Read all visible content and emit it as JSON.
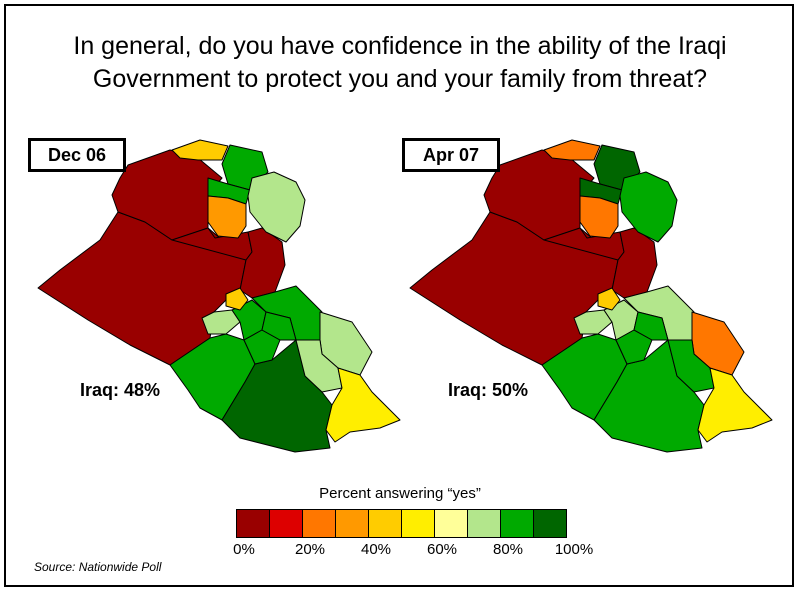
{
  "title": "In general, do you have confidence in the ability of the Iraqi\nGovernment to protect you and your family from threat?",
  "maps": [
    {
      "date": "Dec 06",
      "overall": "Iraq: 48%",
      "regions": {
        "north_tip": "#ffcc00",
        "northwest": "#990000",
        "west": "#990000",
        "center": "#990000",
        "east_strip": "#990000",
        "kurd_north": "#00aa00",
        "kurd_west": "#00aa00",
        "kurd_mid": "#ff9900",
        "kurd_east": "#b3e68c",
        "baghdad": "#ffcc00",
        "mid_west": "#b3e68c",
        "mid_1": "#00aa00",
        "mid_2": "#00aa00",
        "mid_3": "#00aa00",
        "mid_east": "#00aa00",
        "east_large": "#b3e68c",
        "se_right": "#b3e68c",
        "basra": "#ffee00",
        "south_west": "#00aa00",
        "south_big": "#006600"
      }
    },
    {
      "date": "Apr 07",
      "overall": "Iraq: 50%",
      "regions": {
        "north_tip": "#ff7700",
        "northwest": "#990000",
        "west": "#990000",
        "center": "#990000",
        "east_strip": "#990000",
        "kurd_north": "#006600",
        "kurd_west": "#006600",
        "kurd_mid": "#ff7700",
        "kurd_east": "#00aa00",
        "baghdad": "#ffcc00",
        "mid_west": "#b3e68c",
        "mid_1": "#b3e68c",
        "mid_2": "#00aa00",
        "mid_3": "#00aa00",
        "mid_east": "#b3e68c",
        "east_large": "#ff7700",
        "se_right": "#00aa00",
        "basra": "#ffee00",
        "south_west": "#00aa00",
        "south_big": "#00aa00"
      }
    }
  ],
  "legend": {
    "title": "Percent answering “yes”",
    "colors": [
      "#990000",
      "#dd0000",
      "#ff7700",
      "#ff9900",
      "#ffcc00",
      "#ffee00",
      "#ffff99",
      "#b3e68c",
      "#00aa00",
      "#006600"
    ],
    "ticks": [
      "0%",
      "20%",
      "40%",
      "60%",
      "80%",
      "100%"
    ]
  },
  "source": "Source: Nationwide Poll"
}
